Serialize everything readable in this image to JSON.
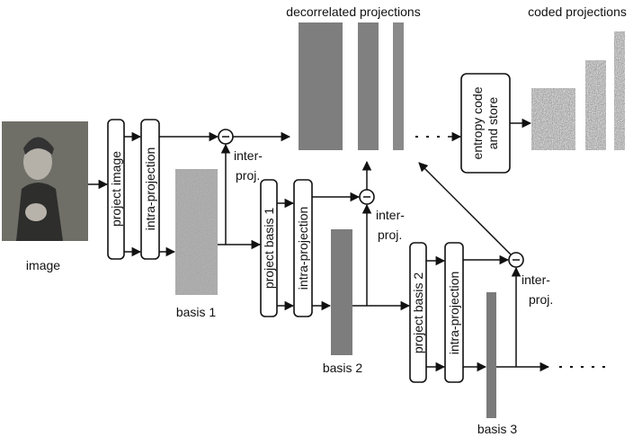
{
  "headers": {
    "decorrelated": "decorrelated projections",
    "coded": "coded projections"
  },
  "image": {
    "label": "image"
  },
  "stages": [
    {
      "project": "project image",
      "intra": "intra-projection",
      "basis": "basis 1",
      "inter": [
        "inter-",
        "proj."
      ]
    },
    {
      "project": "project basis 1",
      "intra": "intra-projection",
      "basis": "basis 2",
      "inter": [
        "inter-",
        "proj."
      ]
    },
    {
      "project": "project basis 2",
      "intra": "intra-projection",
      "basis": "basis 3",
      "inter": [
        "inter-",
        "proj."
      ]
    }
  ],
  "entropy": [
    "entropy code",
    "and store"
  ]
}
